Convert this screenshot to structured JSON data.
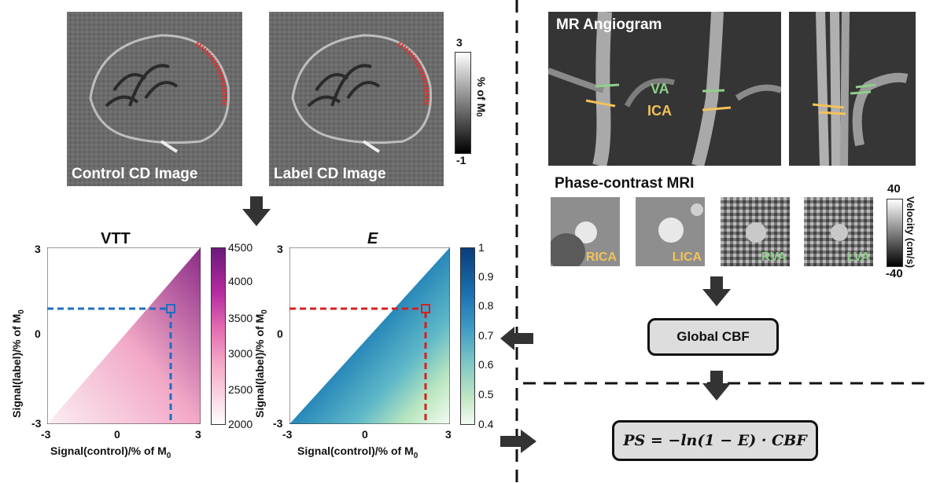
{
  "left": {
    "control_label": "Control CD Image",
    "label_label": "Label CD Image",
    "m0_colorbar": {
      "max": "3",
      "min": "-1",
      "label": "% of M",
      "label_sub": "0"
    }
  },
  "vtt_plot": {
    "title": "VTT",
    "xlabel": "Signal(control)/% of M",
    "xlabel_sub": "0",
    "ylabel": "Signal(label)/% of M",
    "ylabel_sub": "0",
    "xticks": [
      "-3",
      "0",
      "3"
    ],
    "yticks": [
      "3",
      "0",
      "-3"
    ],
    "colorbar_ticks": [
      "4500",
      "4000",
      "3500",
      "3000",
      "2500",
      "2000"
    ]
  },
  "e_plot": {
    "title": "E",
    "xlabel": "Signal(control)/% of M",
    "xlabel_sub": "0",
    "ylabel": "Signal(label)/% of M",
    "ylabel_sub": "0",
    "xticks": [
      "-3",
      "0",
      "3"
    ],
    "yticks": [
      "3",
      "0",
      "-3"
    ],
    "colorbar_ticks": [
      "1",
      "0.9",
      "0.8",
      "0.7",
      "0.6",
      "0.5",
      "0.4"
    ]
  },
  "right": {
    "angiogram_title": "MR Angiogram",
    "va_label": "VA",
    "ica_label": "ICA",
    "pc_title": "Phase-contrast MRI",
    "pc_panels": [
      "RICA",
      "LICA",
      "RVA",
      "LVA"
    ],
    "velocity_colorbar": {
      "max": "40",
      "min": "-40",
      "label": "Velocity (cm/s)"
    },
    "global_cbf": "Global CBF",
    "formula": "PS = −ln(1 − E) · CBF"
  },
  "colors": {
    "va_green": "#8fcf8a",
    "ica_yellow": "#f3c25a",
    "vtt_blue": "#1f6fc0",
    "e_red": "#d62020"
  }
}
